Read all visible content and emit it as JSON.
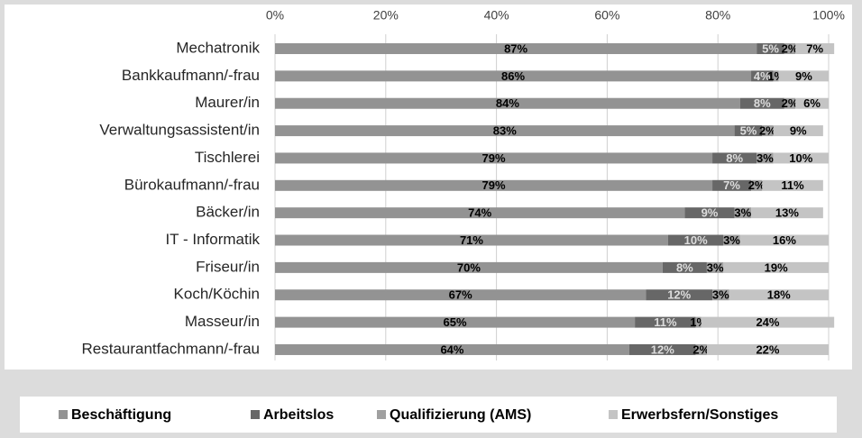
{
  "chart_data": {
    "type": "stacked-bar-horizontal",
    "categories": [
      "Mechatronik",
      "Bankkaufmann/-frau",
      "Maurer/in",
      "Verwaltungsassistent/in",
      "Tischlerei",
      "Bürokaufmann/-frau",
      "Bäcker/in",
      "IT - Informatik",
      "Friseur/in",
      "Koch/Köchin",
      "Masseur/in",
      "Restaurantfachmann/-frau"
    ],
    "series": [
      {
        "name": "Beschäftigung",
        "color": "#939393",
        "values": [
          87,
          86,
          84,
          83,
          79,
          79,
          74,
          71,
          70,
          67,
          65,
          64
        ],
        "value_labels": [
          "87%",
          "86%",
          "84%",
          "83%",
          "79%",
          "79%",
          "74%",
          "71%",
          "70%",
          "67%",
          "65%",
          "64%"
        ]
      },
      {
        "name": "Arbeitslos",
        "color": "#676767",
        "values": [
          5,
          4,
          8,
          5,
          8,
          7,
          9,
          10,
          8,
          12,
          11,
          12
        ],
        "value_labels": [
          "5%",
          "4%",
          "8%",
          "5%",
          "8%",
          "7%",
          "9%",
          "10%",
          "8%",
          "12%",
          "11%",
          "12%"
        ]
      },
      {
        "name": "Qualifizierung (AMS)",
        "color": "#a0a0a0",
        "values": [
          2,
          1,
          2,
          2,
          3,
          2,
          3,
          3,
          3,
          3,
          1,
          2
        ],
        "value_labels": [
          "2%",
          "1%",
          "2%",
          "2%",
          "3%",
          "2%",
          "3%",
          "3%",
          "3%",
          "3%",
          "1%",
          "2%"
        ]
      },
      {
        "name": "Erwerbsfern/Sonstiges",
        "color": "#c4c4c4",
        "values": [
          7,
          9,
          6,
          9,
          10,
          11,
          13,
          16,
          19,
          18,
          24,
          22
        ],
        "value_labels": [
          "7%",
          "9%",
          "6%",
          "9%",
          "10%",
          "11%",
          "13%",
          "16%",
          "19%",
          "18%",
          "24%",
          "22%"
        ]
      }
    ],
    "xlim": [
      0,
      100
    ],
    "xticks": [
      {
        "value": 0,
        "label": "0%"
      },
      {
        "value": 20,
        "label": "20%"
      },
      {
        "value": 40,
        "label": "40%"
      },
      {
        "value": 60,
        "label": "60%"
      },
      {
        "value": 80,
        "label": "80%"
      },
      {
        "value": 100,
        "label": "100%"
      }
    ],
    "grid": true,
    "legend": "bottom"
  }
}
